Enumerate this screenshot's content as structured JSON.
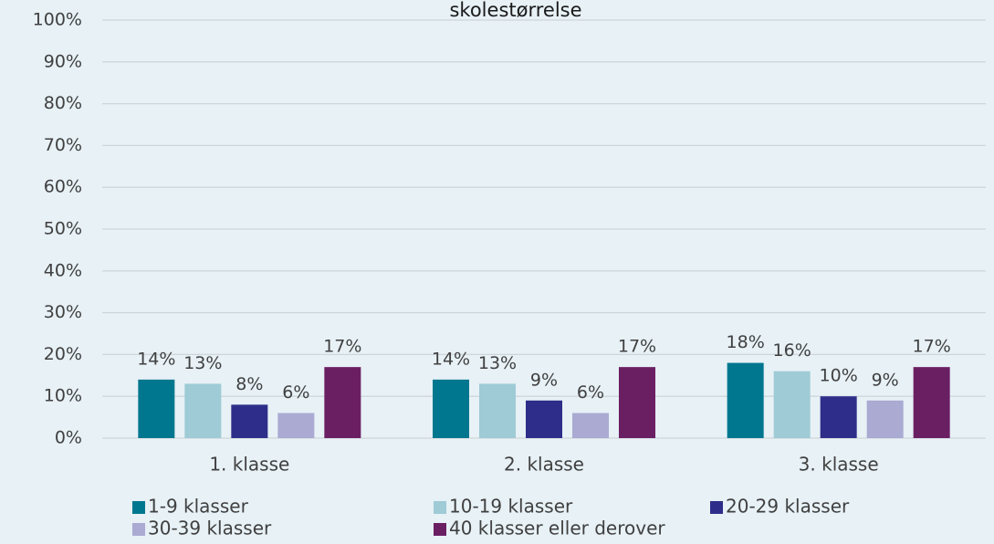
{
  "chart_data": {
    "type": "bar",
    "title": "skolestørrelse",
    "categories": [
      "1. klasse",
      "2. klasse",
      "3. klasse"
    ],
    "series": [
      {
        "name": "1-9 klasser",
        "color": "#00778f",
        "values": [
          14,
          14,
          18
        ],
        "value_labels": [
          "14%",
          "14%",
          "18%"
        ]
      },
      {
        "name": "10-19 klasser",
        "color": "#9ecbd5",
        "values": [
          13,
          13,
          16
        ],
        "value_labels": [
          "13%",
          "13%",
          "16%"
        ]
      },
      {
        "name": "20-29 klasser",
        "color": "#2e2e8a",
        "values": [
          8,
          9,
          10
        ],
        "value_labels": [
          "8%",
          "9%",
          "10%"
        ]
      },
      {
        "name": "30-39 klasser",
        "color": "#aaaad3",
        "values": [
          6,
          6,
          9
        ],
        "value_labels": [
          "6%",
          "6%",
          "9%"
        ]
      },
      {
        "name": "40 klasser eller derover",
        "color": "#6b1f63",
        "values": [
          17,
          17,
          17
        ],
        "value_labels": [
          "17%",
          "17%",
          "17%"
        ]
      }
    ],
    "ylim": [
      0,
      100
    ],
    "yticks": [
      {
        "value": 0,
        "label": "0%"
      },
      {
        "value": 10,
        "label": "10%"
      },
      {
        "value": 20,
        "label": "20%"
      },
      {
        "value": 30,
        "label": "30%"
      },
      {
        "value": 40,
        "label": "40%"
      },
      {
        "value": 50,
        "label": "50%"
      },
      {
        "value": 60,
        "label": "60%"
      },
      {
        "value": 70,
        "label": "70%"
      },
      {
        "value": 80,
        "label": "80%"
      },
      {
        "value": 90,
        "label": "90%"
      },
      {
        "value": 100,
        "label": "100%"
      }
    ],
    "grid": true
  }
}
